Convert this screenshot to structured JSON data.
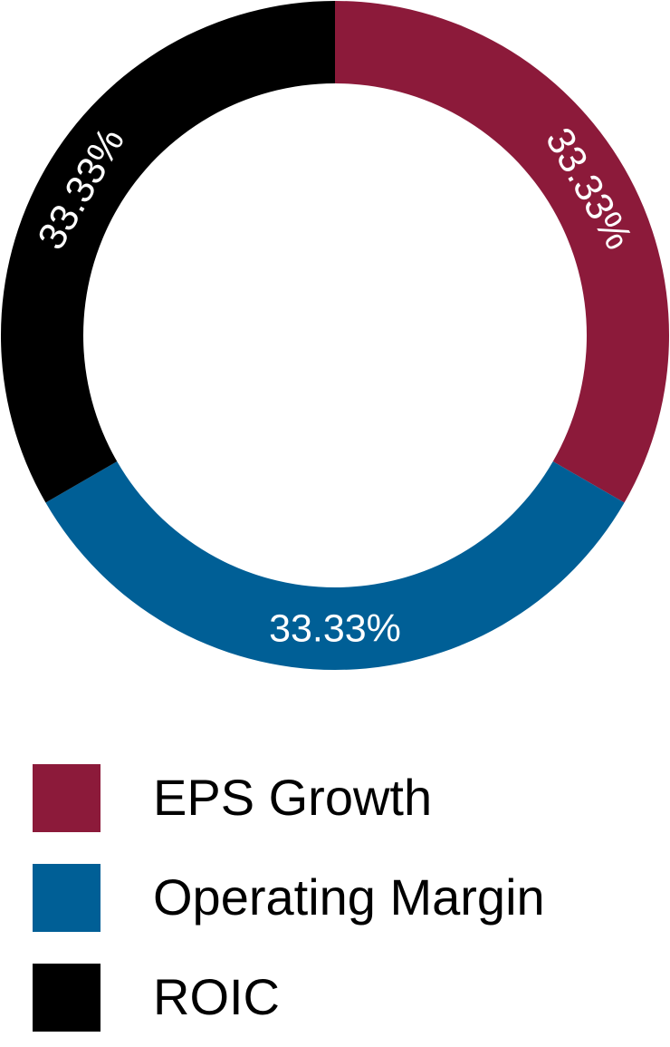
{
  "chart_data": {
    "type": "pie",
    "donut": true,
    "slices": [
      {
        "name": "EPS Growth",
        "value": 33.33,
        "label": "33.33%",
        "color": "#8C1A3A"
      },
      {
        "name": "Operating Margin",
        "value": 33.33,
        "label": "33.33%",
        "color": "#005F96"
      },
      {
        "name": "ROIC",
        "value": 33.33,
        "label": "33.33%",
        "color": "#000000"
      }
    ],
    "legend": {
      "placement": "bottom",
      "entries": [
        "EPS Growth",
        "Operating Margin",
        "ROIC"
      ]
    }
  }
}
